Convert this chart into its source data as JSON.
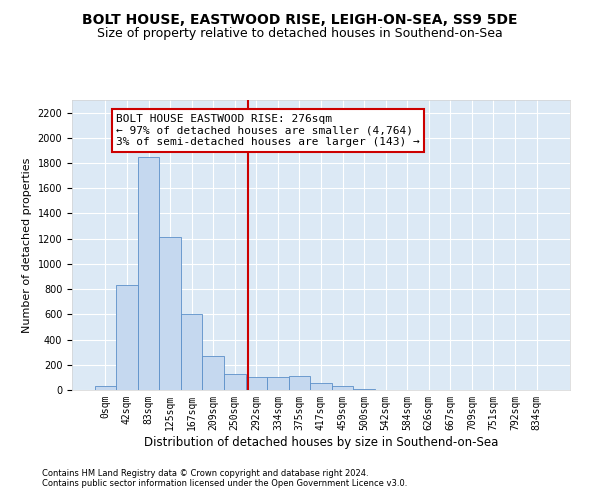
{
  "title": "BOLT HOUSE, EASTWOOD RISE, LEIGH-ON-SEA, SS9 5DE",
  "subtitle": "Size of property relative to detached houses in Southend-on-Sea",
  "xlabel": "Distribution of detached houses by size in Southend-on-Sea",
  "ylabel": "Number of detached properties",
  "bar_labels": [
    "0sqm",
    "42sqm",
    "83sqm",
    "125sqm",
    "167sqm",
    "209sqm",
    "250sqm",
    "292sqm",
    "334sqm",
    "375sqm",
    "417sqm",
    "459sqm",
    "500sqm",
    "542sqm",
    "584sqm",
    "626sqm",
    "667sqm",
    "709sqm",
    "751sqm",
    "792sqm",
    "834sqm"
  ],
  "bar_values": [
    30,
    830,
    1850,
    1210,
    600,
    270,
    130,
    100,
    105,
    110,
    55,
    30,
    5,
    0,
    0,
    0,
    0,
    0,
    0,
    0,
    0
  ],
  "bar_color": "#c5d8ef",
  "bar_edge_color": "#5b8fc9",
  "vline_color": "#cc0000",
  "annotation_line1": "BOLT HOUSE EASTWOOD RISE: 276sqm",
  "annotation_line2": "← 97% of detached houses are smaller (4,764)",
  "annotation_line3": "3% of semi-detached houses are larger (143) →",
  "ylim": [
    0,
    2300
  ],
  "yticks": [
    0,
    200,
    400,
    600,
    800,
    1000,
    1200,
    1400,
    1600,
    1800,
    2000,
    2200
  ],
  "footer1": "Contains HM Land Registry data © Crown copyright and database right 2024.",
  "footer2": "Contains public sector information licensed under the Open Government Licence v3.0.",
  "bg_color": "#dce9f5",
  "title_fontsize": 10,
  "subtitle_fontsize": 9,
  "ylabel_fontsize": 8,
  "xlabel_fontsize": 8.5,
  "tick_fontsize": 7,
  "annotation_fontsize": 8,
  "footer_fontsize": 6
}
